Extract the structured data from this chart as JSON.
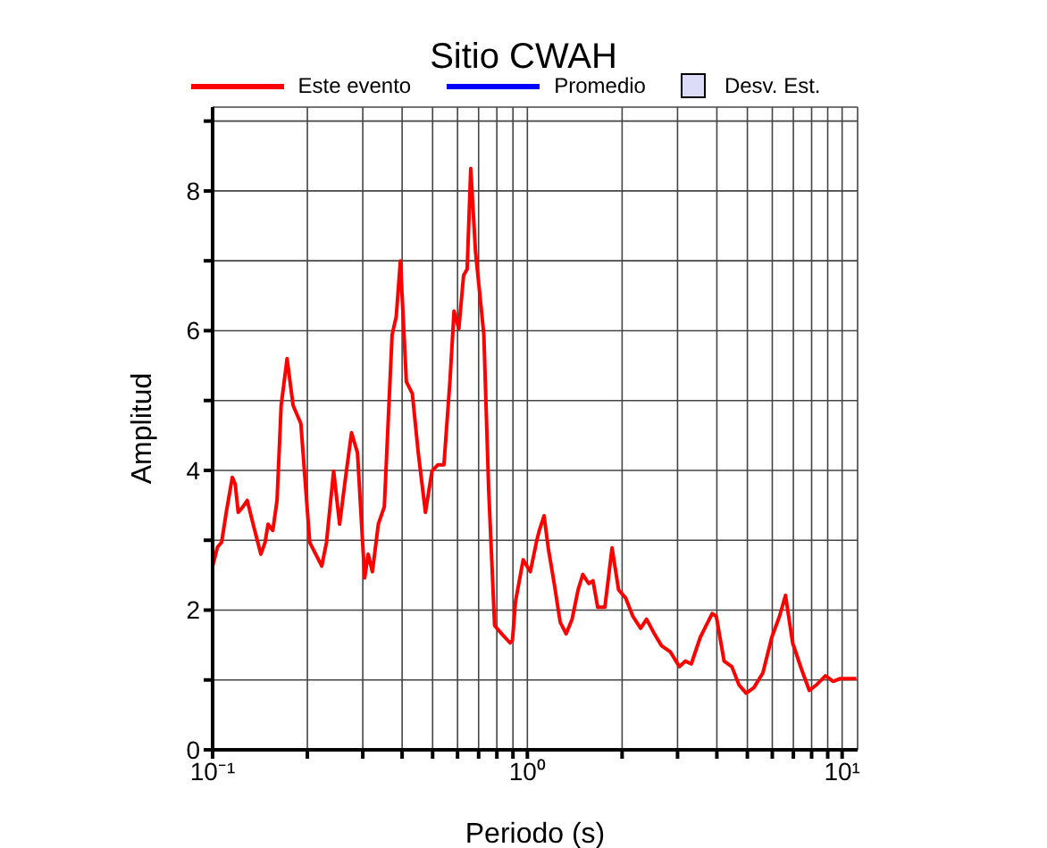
{
  "chart_data": {
    "type": "line",
    "title": "Sitio CWAH",
    "xlabel": "Periodo (s)",
    "ylabel": "Amplitud",
    "log": "x",
    "grid": true,
    "legend": "top",
    "marker": "none",
    "line_style": "solid",
    "xlim": [
      0.1,
      11.2
    ],
    "xticks": [
      {
        "value": 0.1,
        "label": "10⁻¹"
      },
      {
        "value": 0.2,
        "label": null
      },
      {
        "value": 0.3,
        "label": null
      },
      {
        "value": 0.4,
        "label": null
      },
      {
        "value": 0.5,
        "label": null
      },
      {
        "value": 0.6,
        "label": null
      },
      {
        "value": 0.7,
        "label": null
      },
      {
        "value": 0.8,
        "label": null
      },
      {
        "value": 0.9,
        "label": null
      },
      {
        "value": 1,
        "label": "10⁰"
      },
      {
        "value": 2,
        "label": null
      },
      {
        "value": 3,
        "label": null
      },
      {
        "value": 4,
        "label": null
      },
      {
        "value": 5,
        "label": null
      },
      {
        "value": 6,
        "label": null
      },
      {
        "value": 7,
        "label": null
      },
      {
        "value": 8,
        "label": null
      },
      {
        "value": 9,
        "label": null
      },
      {
        "value": 10,
        "label": "10¹"
      }
    ],
    "ylim": [
      0,
      9.2
    ],
    "yticks": [
      0,
      {
        "value": 1,
        "label": null
      },
      2,
      {
        "value": 3,
        "label": null
      },
      4,
      {
        "value": 5,
        "label": null
      },
      6,
      {
        "value": 7,
        "label": null
      },
      8,
      {
        "value": 9,
        "label": null
      }
    ],
    "series": [
      {
        "name": "Este evento",
        "color": "#ff0000",
        "x": [
          0.1,
          0.1036,
          0.1068,
          0.1105,
          0.1155,
          0.118,
          0.1206,
          0.1249,
          0.1288,
          0.1345,
          0.1423,
          0.1468,
          0.15,
          0.1553,
          0.1602,
          0.1651,
          0.1724,
          0.1802,
          0.1907,
          0.2035,
          0.2126,
          0.2222,
          0.23,
          0.2424,
          0.2532,
          0.2645,
          0.2763,
          0.2886,
          0.3041,
          0.3121,
          0.3218,
          0.3361,
          0.3512,
          0.3717,
          0.3831,
          0.395,
          0.4126,
          0.431,
          0.4502,
          0.4744,
          0.4977,
          0.5199,
          0.5431,
          0.5674,
          0.5848,
          0.6056,
          0.6271,
          0.6437,
          0.6608,
          0.6843,
          0.7055,
          0.7273,
          0.7532,
          0.7868,
          0.8291,
          0.8812,
          0.8968,
          0.9166,
          0.9698,
          1.022,
          1.068,
          1.091,
          1.13,
          1.165,
          1.217,
          1.271,
          1.328,
          1.387,
          1.449,
          1.5,
          1.567,
          1.616,
          1.673,
          1.763,
          1.858,
          1.949,
          2.054,
          2.164,
          2.29,
          2.392,
          2.532,
          2.668,
          2.848,
          3.041,
          3.176,
          3.318,
          3.542,
          3.7,
          3.865,
          3.984,
          4.217,
          4.463,
          4.702,
          4.955,
          5.245,
          5.599,
          5.977,
          6.325,
          6.608,
          6.962,
          7.433,
          7.866,
          8.291,
          8.851,
          9.367,
          9.869,
          10.54,
          11.1
        ],
        "values": [
          2.63,
          2.9,
          2.97,
          3.4,
          3.9,
          3.8,
          3.4,
          3.48,
          3.57,
          3.23,
          2.8,
          2.97,
          3.23,
          3.14,
          3.57,
          4.93,
          5.6,
          4.93,
          4.67,
          2.97,
          2.8,
          2.63,
          2.97,
          3.99,
          3.23,
          3.9,
          4.54,
          4.25,
          2.46,
          2.8,
          2.55,
          3.23,
          3.48,
          5.94,
          6.2,
          7.0,
          5.27,
          5.1,
          4.25,
          3.4,
          3.99,
          4.08,
          4.08,
          5.27,
          6.28,
          6.03,
          6.79,
          6.88,
          8.32,
          7.13,
          6.54,
          5.94,
          3.74,
          1.78,
          1.66,
          1.53,
          1.57,
          2.12,
          2.72,
          2.55,
          2.97,
          3.14,
          3.35,
          2.89,
          2.38,
          1.83,
          1.66,
          1.87,
          2.29,
          2.51,
          2.38,
          2.42,
          2.04,
          2.04,
          2.89,
          2.29,
          2.17,
          1.91,
          1.74,
          1.87,
          1.66,
          1.49,
          1.4,
          1.19,
          1.27,
          1.23,
          1.61,
          1.78,
          1.95,
          1.91,
          1.27,
          1.19,
          0.93,
          0.81,
          0.89,
          1.1,
          1.61,
          1.91,
          2.21,
          1.53,
          1.15,
          0.85,
          0.93,
          1.06,
          0.98,
          1.02,
          1.02,
          1.02
        ]
      },
      {
        "name": "Promedio",
        "color": "#0000ff"
      },
      {
        "name": "Desv. Est.",
        "type": "area",
        "color": "#dcdcf8"
      }
    ]
  }
}
